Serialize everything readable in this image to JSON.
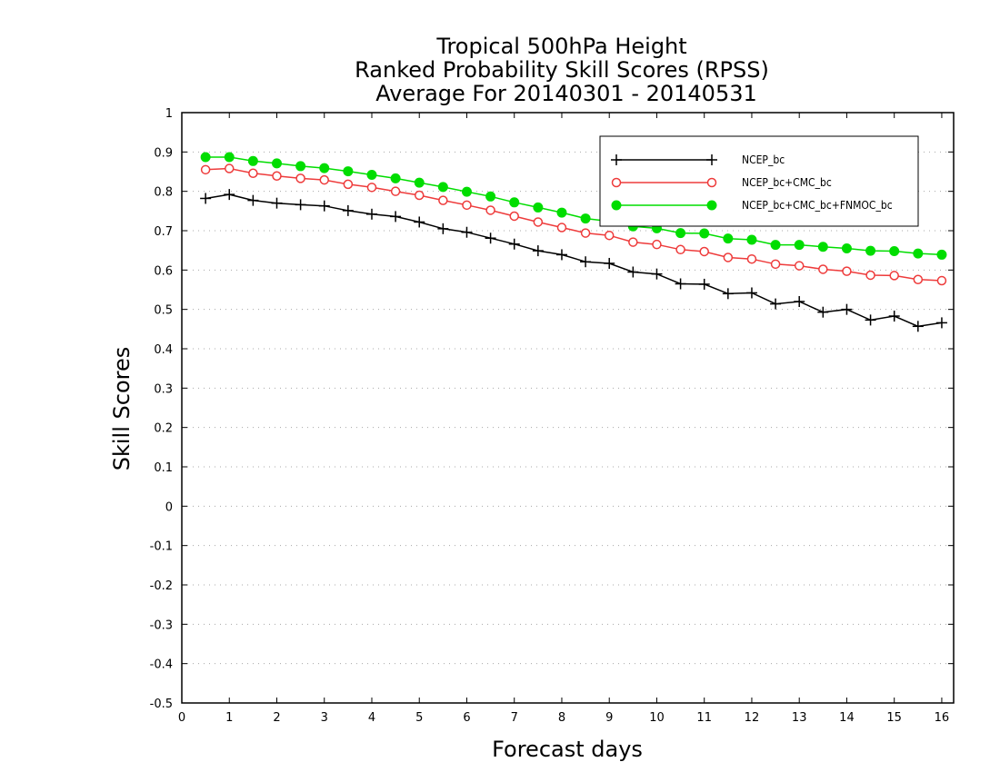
{
  "chart_data": {
    "type": "line",
    "title": [
      "Tropical 500hPa Height",
      "Ranked Probability Skill Scores (RPSS)",
      "Average For 20140301 - 20140531"
    ],
    "xlabel": "Forecast days",
    "ylabel": "Skill Scores",
    "xlim": [
      0,
      16.25
    ],
    "ylim": [
      -0.5,
      1
    ],
    "xticks": [
      0,
      1,
      2,
      3,
      4,
      5,
      6,
      7,
      8,
      9,
      10,
      11,
      12,
      13,
      14,
      15,
      16
    ],
    "xtick_labels": [
      "0",
      "1",
      "2",
      "3",
      "4",
      "5",
      "6",
      "7",
      "8",
      "9",
      "10",
      "11",
      "12",
      "13",
      "14",
      "15",
      "16"
    ],
    "yticks": [
      -0.5,
      -0.4,
      -0.3,
      -0.2,
      -0.1,
      0,
      0.1,
      0.2,
      0.3,
      0.4,
      0.5,
      0.6,
      0.7,
      0.8,
      0.9,
      1
    ],
    "ytick_labels": [
      "-0.5",
      "-0.4",
      "-0.3",
      "-0.2",
      "-0.1",
      "0",
      "0.1",
      "0.2",
      "0.3",
      "0.4",
      "0.5",
      "0.6",
      "0.7",
      "0.8",
      "0.9",
      "1"
    ],
    "grid": "horizontal dotted",
    "legend_position": "top-right",
    "x": [
      0.5,
      1.0,
      1.5,
      2.0,
      2.5,
      3.0,
      3.5,
      4.0,
      4.5,
      5.0,
      5.5,
      6.0,
      6.5,
      7.0,
      7.5,
      8.0,
      8.5,
      9.0,
      9.5,
      10.0,
      10.5,
      11.0,
      11.5,
      12.0,
      12.5,
      13.0,
      13.5,
      14.0,
      14.5,
      15.0,
      15.5,
      16.0
    ],
    "series": [
      {
        "name": "NCEP_bc",
        "color": "#000000",
        "marker": "plus",
        "values": [
          0.782,
          0.792,
          0.777,
          0.77,
          0.766,
          0.763,
          0.751,
          0.742,
          0.736,
          0.722,
          0.705,
          0.696,
          0.681,
          0.666,
          0.649,
          0.639,
          0.621,
          0.617,
          0.595,
          0.59,
          0.565,
          0.564,
          0.54,
          0.542,
          0.514,
          0.52,
          0.493,
          0.5,
          0.473,
          0.483,
          0.457,
          0.466
        ]
      },
      {
        "name": "NCEP_bc+CMC_bc",
        "color": "#ee3b3b",
        "marker": "open-circle",
        "values": [
          0.855,
          0.858,
          0.846,
          0.839,
          0.833,
          0.829,
          0.818,
          0.81,
          0.8,
          0.79,
          0.777,
          0.765,
          0.752,
          0.737,
          0.722,
          0.708,
          0.694,
          0.688,
          0.671,
          0.665,
          0.652,
          0.647,
          0.632,
          0.628,
          0.615,
          0.611,
          0.602,
          0.597,
          0.587,
          0.586,
          0.576,
          0.573
        ]
      },
      {
        "name": "NCEP_bc+CMC_bc+FNMOC_bc",
        "color": "#00dd00",
        "marker": "filled-circle",
        "values": [
          0.887,
          0.887,
          0.877,
          0.871,
          0.864,
          0.859,
          0.851,
          0.842,
          0.833,
          0.822,
          0.811,
          0.799,
          0.787,
          0.772,
          0.759,
          0.746,
          0.731,
          0.724,
          0.711,
          0.706,
          0.694,
          0.693,
          0.68,
          0.677,
          0.664,
          0.664,
          0.659,
          0.655,
          0.649,
          0.648,
          0.642,
          0.639
        ]
      }
    ]
  }
}
